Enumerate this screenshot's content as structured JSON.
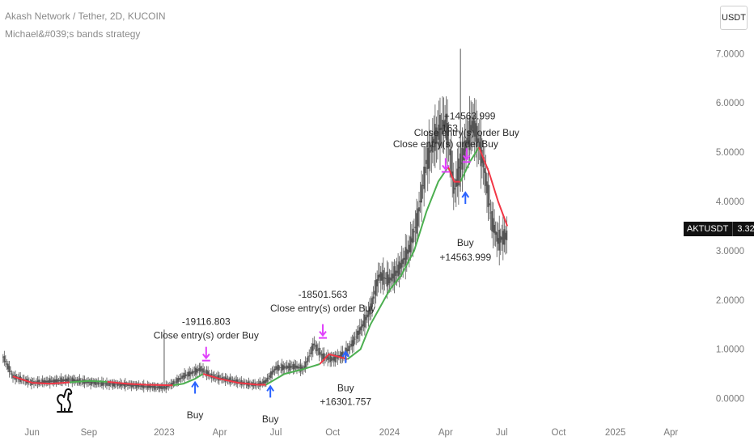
{
  "header": {
    "title": "Akash Network / Tether, 2D, KUCOIN",
    "indicator": "Michael&#039;s bands strategy"
  },
  "unit_button": {
    "label": "USDT"
  },
  "price_tag": {
    "symbol": "AKTUSDT",
    "price": "3.3221"
  },
  "icons": {
    "logo": "dinosaur-logo-icon"
  },
  "colors": {
    "candles": "#555555",
    "band_up": "#4caf50",
    "band_down": "#f23645",
    "close_marker": "#e040fb",
    "entry_marker": "#2962ff"
  },
  "chart_data": {
    "type": "line",
    "x_unit": "date",
    "ylim": [
      -0.45,
      7.35
    ],
    "xlim": [
      "2022-04-10",
      "2025-04-15"
    ],
    "y_ticks": [
      "0.0000",
      "1.0000",
      "2.0000",
      "3.0000",
      "4.0000",
      "5.0000",
      "6.0000",
      "7.0000"
    ],
    "x_ticks": [
      {
        "label": "Jun",
        "date": "2022-06-01"
      },
      {
        "label": "Sep",
        "date": "2022-09-01"
      },
      {
        "label": "2023",
        "date": "2023-01-01"
      },
      {
        "label": "Apr",
        "date": "2023-04-01"
      },
      {
        "label": "Jul",
        "date": "2023-07-01"
      },
      {
        "label": "Oct",
        "date": "2023-10-01"
      },
      {
        "label": "2024",
        "date": "2024-01-01"
      },
      {
        "label": "Apr",
        "date": "2024-04-01"
      },
      {
        "label": "Jul",
        "date": "2024-07-01"
      },
      {
        "label": "Oct",
        "date": "2024-10-01"
      },
      {
        "label": "2025",
        "date": "2025-01-01"
      },
      {
        "label": "Apr",
        "date": "2025-04-01"
      }
    ],
    "price_path": [
      [
        "2022-04-15",
        0.85
      ],
      [
        "2022-05-01",
        0.45
      ],
      [
        "2022-06-01",
        0.32
      ],
      [
        "2022-07-01",
        0.35
      ],
      [
        "2022-08-01",
        0.38
      ],
      [
        "2022-09-01",
        0.33
      ],
      [
        "2022-10-01",
        0.3
      ],
      [
        "2022-11-01",
        0.28
      ],
      [
        "2022-12-01",
        0.25
      ],
      [
        "2023-01-01",
        0.22
      ],
      [
        "2023-01-15",
        0.3
      ],
      [
        "2023-02-01",
        0.45
      ],
      [
        "2023-02-20",
        0.55
      ],
      [
        "2023-03-01",
        0.6
      ],
      [
        "2023-03-20",
        0.45
      ],
      [
        "2023-04-15",
        0.38
      ],
      [
        "2023-05-15",
        0.3
      ],
      [
        "2023-06-01",
        0.28
      ],
      [
        "2023-06-15",
        0.35
      ],
      [
        "2023-07-01",
        0.62
      ],
      [
        "2023-08-01",
        0.65
      ],
      [
        "2023-08-15",
        0.6
      ],
      [
        "2023-09-01",
        1.1
      ],
      [
        "2023-09-15",
        0.85
      ],
      [
        "2023-10-01",
        0.8
      ],
      [
        "2023-10-20",
        0.9
      ],
      [
        "2023-11-01",
        1.1
      ],
      [
        "2023-11-15",
        1.4
      ],
      [
        "2023-12-01",
        1.8
      ],
      [
        "2023-12-15",
        2.5
      ],
      [
        "2024-01-01",
        2.4
      ],
      [
        "2024-01-15",
        2.6
      ],
      [
        "2024-02-01",
        3.0
      ],
      [
        "2024-02-15",
        3.6
      ],
      [
        "2024-03-01",
        4.8
      ],
      [
        "2024-03-15",
        5.3
      ],
      [
        "2024-04-01",
        5.6
      ],
      [
        "2024-04-08",
        5.0
      ],
      [
        "2024-04-15",
        4.2
      ],
      [
        "2024-04-22",
        4.6
      ],
      [
        "2024-05-01",
        5.0
      ],
      [
        "2024-05-15",
        5.6
      ],
      [
        "2024-05-25",
        5.2
      ],
      [
        "2024-06-01",
        4.8
      ],
      [
        "2024-06-15",
        3.6
      ],
      [
        "2024-06-25",
        3.2
      ],
      [
        "2024-07-10",
        3.32
      ]
    ],
    "series": [
      {
        "name": "",
        "color_segments": [
          {
            "color": "#f23645",
            "points": [
              [
                "2022-05-01",
                0.45
              ],
              [
                "2022-06-01",
                0.32
              ],
              [
                "2022-07-01",
                0.3
              ],
              [
                "2022-08-01",
                0.33
              ]
            ]
          },
          {
            "color": "#4caf50",
            "points": [
              [
                "2022-08-01",
                0.33
              ],
              [
                "2022-09-01",
                0.36
              ],
              [
                "2022-10-01",
                0.34
              ]
            ]
          },
          {
            "color": "#f23645",
            "points": [
              [
                "2022-10-01",
                0.34
              ],
              [
                "2022-11-01",
                0.3
              ],
              [
                "2022-12-01",
                0.28
              ],
              [
                "2023-01-15",
                0.27
              ]
            ]
          },
          {
            "color": "#4caf50",
            "points": [
              [
                "2023-01-15",
                0.27
              ],
              [
                "2023-02-01",
                0.3
              ],
              [
                "2023-02-20",
                0.4
              ],
              [
                "2023-03-05",
                0.5
              ]
            ]
          },
          {
            "color": "#f23645",
            "points": [
              [
                "2023-03-05",
                0.5
              ],
              [
                "2023-04-01",
                0.4
              ],
              [
                "2023-05-01",
                0.32
              ],
              [
                "2023-06-01",
                0.28
              ],
              [
                "2023-06-15",
                0.28
              ]
            ]
          },
          {
            "color": "#4caf50",
            "points": [
              [
                "2023-06-15",
                0.28
              ],
              [
                "2023-07-15",
                0.5
              ],
              [
                "2023-08-15",
                0.6
              ],
              [
                "2023-09-10",
                0.7
              ]
            ]
          },
          {
            "color": "#f23645",
            "points": [
              [
                "2023-09-10",
                0.7
              ],
              [
                "2023-09-25",
                0.9
              ],
              [
                "2023-10-10",
                0.85
              ],
              [
                "2023-10-25",
                0.8
              ]
            ]
          },
          {
            "color": "#4caf50",
            "points": [
              [
                "2023-10-25",
                0.8
              ],
              [
                "2023-11-15",
                1.0
              ],
              [
                "2023-12-01",
                1.5
              ],
              [
                "2024-01-01",
                2.2
              ],
              [
                "2024-01-20",
                2.5
              ],
              [
                "2024-02-10",
                3.0
              ],
              [
                "2024-03-01",
                3.8
              ],
              [
                "2024-03-20",
                4.4
              ],
              [
                "2024-04-05",
                4.7
              ]
            ]
          },
          {
            "color": "#f23645",
            "points": [
              [
                "2024-04-05",
                4.7
              ],
              [
                "2024-04-15",
                4.4
              ],
              [
                "2024-04-25",
                4.4
              ]
            ]
          },
          {
            "color": "#4caf50",
            "points": [
              [
                "2024-04-25",
                4.4
              ],
              [
                "2024-05-10",
                4.8
              ],
              [
                "2024-05-25",
                5.1
              ]
            ]
          },
          {
            "color": "#f23645",
            "points": [
              [
                "2024-05-25",
                5.1
              ],
              [
                "2024-06-10",
                4.6
              ],
              [
                "2024-06-25",
                4.0
              ],
              [
                "2024-07-10",
                3.5
              ]
            ]
          }
        ]
      }
    ],
    "spikes": [
      {
        "date": "2023-01-01",
        "high": 1.4,
        "low": 0.2
      },
      {
        "date": "2024-04-25",
        "high": 7.1,
        "low": 4.2
      }
    ],
    "annotations": [
      {
        "text": "Buy",
        "date": "2023-02-20",
        "y": -0.4,
        "kind": "buy-arrow",
        "arrow_y": 0.1
      },
      {
        "text": "-19116.803",
        "date": "2023-03-10",
        "y": 1.5
      },
      {
        "text": "Close entry(s) order Buy",
        "date": "2023-03-10",
        "y": 1.22,
        "kind": "close-marker",
        "marker_y": 0.82
      },
      {
        "text": "Buy",
        "date": "2023-06-22",
        "y": -0.48,
        "kind": "buy-arrow",
        "arrow_y": 0.02
      },
      {
        "text": "-18501.563",
        "date": "2023-09-15",
        "y": 2.05
      },
      {
        "text": "Close entry(s) order Buy",
        "date": "2023-09-15",
        "y": 1.77,
        "kind": "close-marker",
        "marker_y": 1.28
      },
      {
        "text": "Buy",
        "date": "2023-10-22",
        "y": 0.15,
        "kind": "buy-arrow",
        "arrow_y": 0.72
      },
      {
        "text": "+16301.757",
        "date": "2023-10-22",
        "y": -0.13
      },
      {
        "text": "Close entry(s) order Buy",
        "date": "2024-04-01",
        "y": 5.1,
        "kind": "close-marker",
        "marker_y": 4.65
      },
      {
        "text": "-163",
        "date": "2024-04-05",
        "y": 5.42
      },
      {
        "text": "Close entry(s) order Buy",
        "date": "2024-05-05",
        "y": 5.33,
        "kind": "close-marker",
        "marker_y": 4.85
      },
      {
        "text": "+14563.999",
        "date": "2024-05-10",
        "y": 5.67
      },
      {
        "text": "Buy",
        "date": "2024-05-03",
        "y": 3.1,
        "kind": "buy-arrow",
        "arrow_y": 3.95
      },
      {
        "text": "+14563.999",
        "date": "2024-05-03",
        "y": 2.8
      }
    ]
  }
}
